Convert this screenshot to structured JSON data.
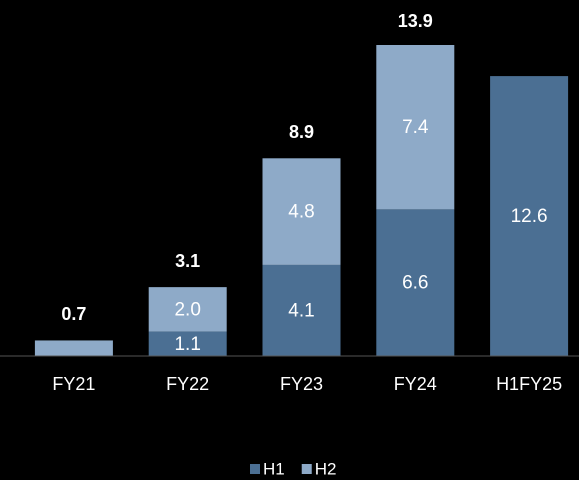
{
  "chart_data": {
    "type": "stacked_bar",
    "categories": [
      "FY21",
      "FY22",
      "FY23",
      "FY24",
      "H1FY25"
    ],
    "series": [
      {
        "name": "H1",
        "color": "#4b6f93",
        "values": [
          null,
          1.1,
          4.1,
          6.6,
          12.6
        ]
      },
      {
        "name": "H2",
        "color": "#8eaac8",
        "values": [
          0.7,
          2.0,
          4.8,
          7.4,
          null
        ],
        "value_labels": [
          null,
          "2.0",
          "4.8",
          "7.4",
          null
        ]
      }
    ],
    "totals": [
      0.7,
      3.1,
      8.9,
      13.9,
      null
    ],
    "ylim": [
      0,
      14
    ]
  }
}
